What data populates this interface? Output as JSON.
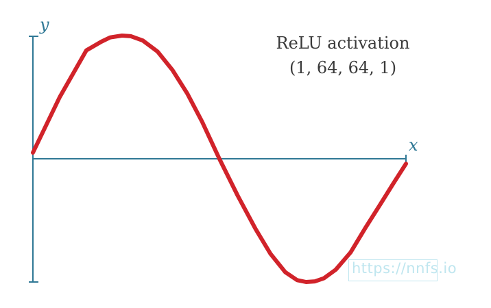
{
  "chart_data": {
    "type": "line",
    "title": [
      "ReLU activation",
      "(1, 64, 64, 1)"
    ],
    "xlabel": "x",
    "ylabel": "y",
    "xlim": [
      0,
      6.283
    ],
    "ylim": [
      -1.0,
      1.0
    ],
    "grid": false,
    "legend": null,
    "series": [
      {
        "color": "#d1232a",
        "x": [
          0.0,
          0.45,
          0.9,
          1.15,
          1.3,
          1.5,
          1.65,
          1.85,
          2.1,
          2.35,
          2.6,
          2.85,
          3.14,
          3.45,
          3.75,
          4.0,
          4.25,
          4.45,
          4.6,
          4.75,
          4.9,
          5.1,
          5.35,
          5.6,
          5.85,
          6.07,
          6.283
        ],
        "y": [
          0.05,
          0.5,
          0.88,
          0.95,
          0.985,
          1.0,
          0.995,
          0.96,
          0.87,
          0.72,
          0.53,
          0.3,
          0.0,
          -0.3,
          -0.57,
          -0.77,
          -0.92,
          -0.985,
          -1.0,
          -0.995,
          -0.97,
          -0.9,
          -0.76,
          -0.56,
          -0.37,
          -0.2,
          -0.04
        ]
      }
    ]
  },
  "watermark": "https://nnfs.io",
  "colors": {
    "axis": "#2f7895",
    "curve": "#d1232a",
    "title": "#3a3a3a",
    "watermark": "#bfe6ef"
  }
}
